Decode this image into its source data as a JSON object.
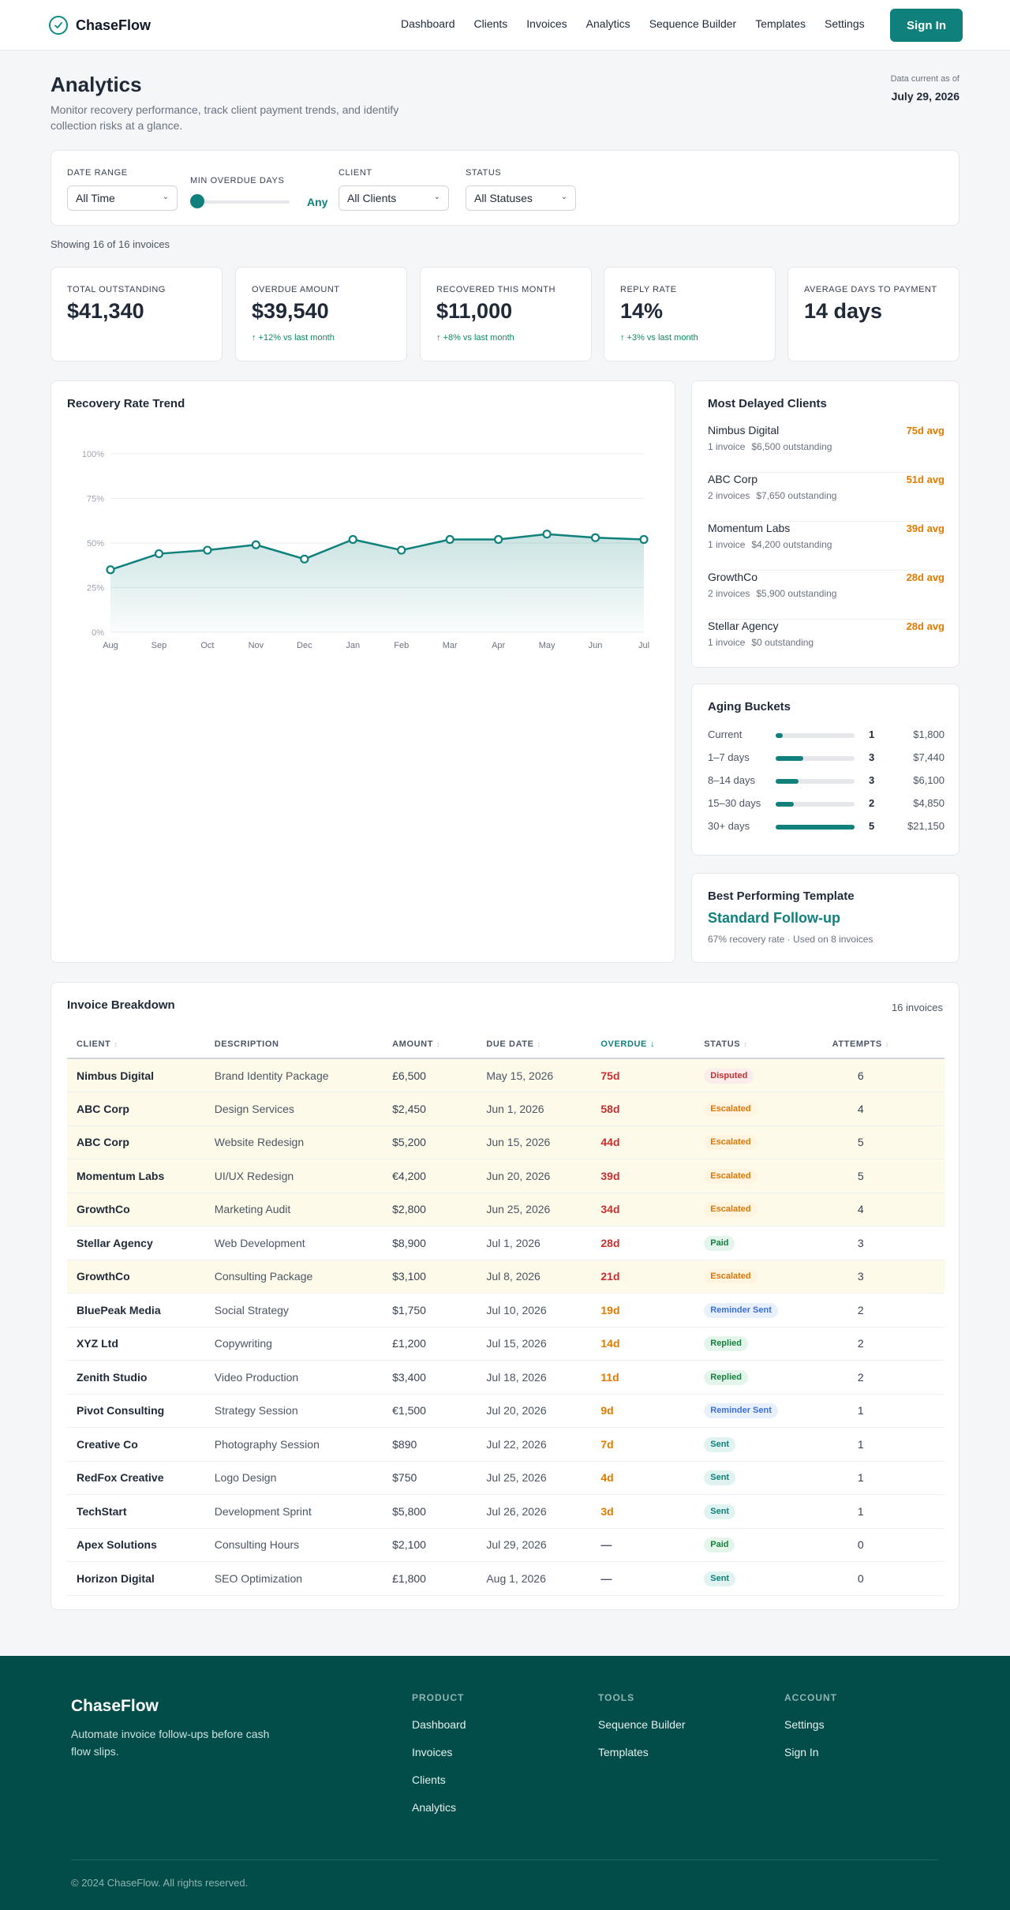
{
  "nav": {
    "brand": "ChaseFlow",
    "links": [
      "Dashboard",
      "Clients",
      "Invoices",
      "Analytics",
      "Sequence Builder",
      "Templates",
      "Settings"
    ],
    "signin": "Sign In"
  },
  "header": {
    "title": "Analytics",
    "subtitle": "Monitor recovery performance, track client payment trends, and identify collection risks at a glance.",
    "asof_label": "Data current as of",
    "asof_date": "July 29, 2026"
  },
  "filters": {
    "date_range": {
      "label": "Date Range",
      "value": "All Time"
    },
    "min_overdue": {
      "label": "Min Overdue Days",
      "value": "Any",
      "level": 0
    },
    "client": {
      "label": "Client",
      "value": "All Clients"
    },
    "status": {
      "label": "Status",
      "value": "All Statuses"
    }
  },
  "showing": "Showing 16 of 16 invoices",
  "kpis": [
    {
      "label": "Total Outstanding",
      "value": "$41,340",
      "delta": ""
    },
    {
      "label": "Overdue Amount",
      "value": "$39,540",
      "delta": "↑ +12% vs last month"
    },
    {
      "label": "Recovered This Month",
      "value": "$11,000",
      "delta": "↑ +8% vs last month"
    },
    {
      "label": "Reply Rate",
      "value": "14%",
      "delta": "↑ +3% vs last month"
    },
    {
      "label": "Average Days to Payment",
      "value": "14 days",
      "delta": ""
    }
  ],
  "chart_title": "Recovery Rate Trend",
  "chart_data": {
    "type": "area",
    "title": "Recovery Rate Trend",
    "categories": [
      "Aug",
      "Sep",
      "Oct",
      "Nov",
      "Dec",
      "Jan",
      "Feb",
      "Mar",
      "Apr",
      "May",
      "Jun",
      "Jul"
    ],
    "values": [
      35,
      44,
      46,
      49,
      41,
      52,
      46,
      52,
      52,
      55,
      53,
      52
    ],
    "yticks": [
      "0%",
      "25%",
      "50%",
      "75%",
      "100%"
    ],
    "ylim": [
      0,
      100
    ],
    "grid": true,
    "color": "#0f807c"
  },
  "delayed": {
    "title": "Most Delayed Clients",
    "items": [
      {
        "name": "Nimbus Digital",
        "invoices": "1 invoice",
        "outstanding": "$6,500 outstanding",
        "avg": "75d avg"
      },
      {
        "name": "ABC Corp",
        "invoices": "2 invoices",
        "outstanding": "$7,650 outstanding",
        "avg": "51d avg"
      },
      {
        "name": "Momentum Labs",
        "invoices": "1 invoice",
        "outstanding": "$4,200 outstanding",
        "avg": "39d avg"
      },
      {
        "name": "GrowthCo",
        "invoices": "2 invoices",
        "outstanding": "$5,900 outstanding",
        "avg": "28d avg"
      },
      {
        "name": "Stellar Agency",
        "invoices": "1 invoice",
        "outstanding": "$0 outstanding",
        "avg": "28d avg"
      }
    ]
  },
  "aging": {
    "title": "Aging Buckets",
    "rows": [
      {
        "label": "Current",
        "count": "1",
        "amount": "$1,800",
        "level": 0.085
      },
      {
        "label": "1–7 days",
        "count": "3",
        "amount": "$7,440",
        "level": 0.35
      },
      {
        "label": "8–14 days",
        "count": "3",
        "amount": "$6,100",
        "level": 0.29
      },
      {
        "label": "15–30 days",
        "count": "2",
        "amount": "$4,850",
        "level": 0.23
      },
      {
        "label": "30+ days",
        "count": "5",
        "amount": "$21,150",
        "level": 1.0
      }
    ]
  },
  "best": {
    "title": "Best Performing Template",
    "name": "Standard Follow-up",
    "sub": "67% recovery rate · Used on 8 invoices"
  },
  "table": {
    "title": "Invoice Breakdown",
    "count": "16 invoices",
    "columns": [
      "Client",
      "Description",
      "Amount",
      "Due Date",
      "Overdue",
      "Status",
      "Attempts"
    ],
    "rows": [
      {
        "client": "Nimbus Digital",
        "desc": "Brand Identity Package",
        "amount": "£6,500",
        "due": "May 15, 2026",
        "overdue": "75d",
        "status": "Disputed",
        "attempts": "6",
        "hl": true,
        "tone": "red"
      },
      {
        "client": "ABC Corp",
        "desc": "Design Services",
        "amount": "$2,450",
        "due": "Jun 1, 2026",
        "overdue": "58d",
        "status": "Escalated",
        "attempts": "4",
        "hl": true,
        "tone": "red"
      },
      {
        "client": "ABC Corp",
        "desc": "Website Redesign",
        "amount": "$5,200",
        "due": "Jun 15, 2026",
        "overdue": "44d",
        "status": "Escalated",
        "attempts": "5",
        "hl": true,
        "tone": "red"
      },
      {
        "client": "Momentum Labs",
        "desc": "UI/UX Redesign",
        "amount": "€4,200",
        "due": "Jun 20, 2026",
        "overdue": "39d",
        "status": "Escalated",
        "attempts": "5",
        "hl": true,
        "tone": "red"
      },
      {
        "client": "GrowthCo",
        "desc": "Marketing Audit",
        "amount": "$2,800",
        "due": "Jun 25, 2026",
        "overdue": "34d",
        "status": "Escalated",
        "attempts": "4",
        "hl": true,
        "tone": "red"
      },
      {
        "client": "Stellar Agency",
        "desc": "Web Development",
        "amount": "$8,900",
        "due": "Jul 1, 2026",
        "overdue": "28d",
        "status": "Paid",
        "attempts": "3",
        "hl": false,
        "tone": "red"
      },
      {
        "client": "GrowthCo",
        "desc": "Consulting Package",
        "amount": "$3,100",
        "due": "Jul 8, 2026",
        "overdue": "21d",
        "status": "Escalated",
        "attempts": "3",
        "hl": true,
        "tone": "red"
      },
      {
        "client": "BluePeak Media",
        "desc": "Social Strategy",
        "amount": "$1,750",
        "due": "Jul 10, 2026",
        "overdue": "19d",
        "status": "Reminder Sent",
        "attempts": "2",
        "hl": false,
        "tone": "orange"
      },
      {
        "client": "XYZ Ltd",
        "desc": "Copywriting",
        "amount": "£1,200",
        "due": "Jul 15, 2026",
        "overdue": "14d",
        "status": "Replied",
        "attempts": "2",
        "hl": false,
        "tone": "orange"
      },
      {
        "client": "Zenith Studio",
        "desc": "Video Production",
        "amount": "$3,400",
        "due": "Jul 18, 2026",
        "overdue": "11d",
        "status": "Replied",
        "attempts": "2",
        "hl": false,
        "tone": "orange"
      },
      {
        "client": "Pivot Consulting",
        "desc": "Strategy Session",
        "amount": "€1,500",
        "due": "Jul 20, 2026",
        "overdue": "9d",
        "status": "Reminder Sent",
        "attempts": "1",
        "hl": false,
        "tone": "orange"
      },
      {
        "client": "Creative Co",
        "desc": "Photography Session",
        "amount": "$890",
        "due": "Jul 22, 2026",
        "overdue": "7d",
        "status": "Sent",
        "attempts": "1",
        "hl": false,
        "tone": "orange"
      },
      {
        "client": "RedFox Creative",
        "desc": "Logo Design",
        "amount": "$750",
        "due": "Jul 25, 2026",
        "overdue": "4d",
        "status": "Sent",
        "attempts": "1",
        "hl": false,
        "tone": "orange"
      },
      {
        "client": "TechStart",
        "desc": "Development Sprint",
        "amount": "$5,800",
        "due": "Jul 26, 2026",
        "overdue": "3d",
        "status": "Sent",
        "attempts": "1",
        "hl": false,
        "tone": "orange"
      },
      {
        "client": "Apex Solutions",
        "desc": "Consulting Hours",
        "amount": "$2,100",
        "due": "Jul 29, 2026",
        "overdue": "—",
        "status": "Paid",
        "attempts": "0",
        "hl": false,
        "tone": "none"
      },
      {
        "client": "Horizon Digital",
        "desc": "SEO Optimization",
        "amount": "£1,800",
        "due": "Aug 1, 2026",
        "overdue": "—",
        "status": "Sent",
        "attempts": "0",
        "hl": false,
        "tone": "none"
      }
    ]
  },
  "footer": {
    "brand": "ChaseFlow",
    "tagline": "Automate invoice follow-ups before cash flow slips.",
    "cols": [
      {
        "head": "Product",
        "links": [
          "Dashboard",
          "Invoices",
          "Clients",
          "Analytics"
        ]
      },
      {
        "head": "Tools",
        "links": [
          "Sequence Builder",
          "Templates"
        ]
      },
      {
        "head": "Account",
        "links": [
          "Settings",
          "Sign In"
        ]
      }
    ],
    "copyright": "© 2024 ChaseFlow. All rights reserved."
  },
  "colors": {
    "accent": "#0f807c",
    "overdue_red": "#c53030",
    "overdue_orange": "#e07b00",
    "footer_bg": "#024c49"
  }
}
